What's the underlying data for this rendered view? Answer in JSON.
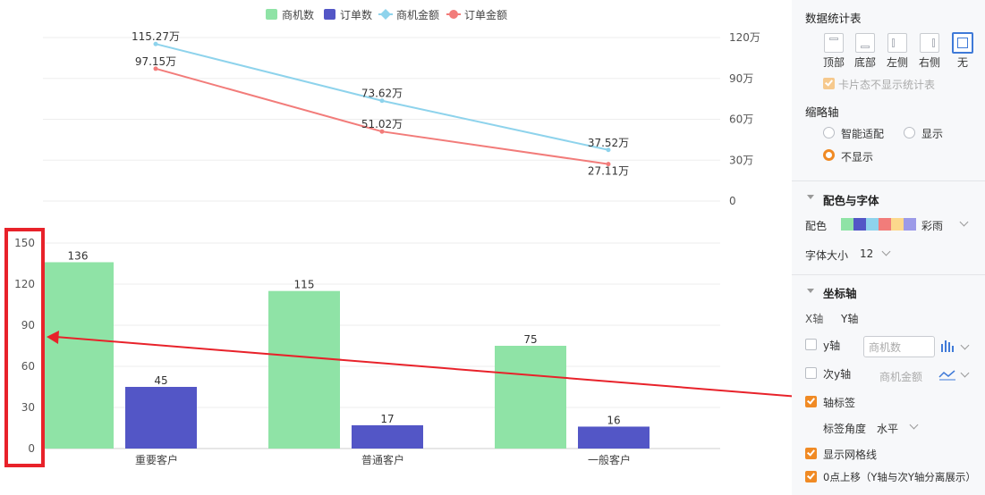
{
  "legend": [
    {
      "name": "商机数",
      "color": "#8fe3a6",
      "shape": "rect"
    },
    {
      "name": "订单数",
      "color": "#5356c6",
      "shape": "rect"
    },
    {
      "name": "商机金额",
      "color": "#8ed3ec",
      "shape": "diamond"
    },
    {
      "name": "订单金额",
      "color": "#f27c7a",
      "shape": "circle"
    }
  ],
  "chart_data": {
    "type": "bar",
    "categories": [
      "重要客户",
      "普通客户",
      "一般客户"
    ],
    "series": [
      {
        "name": "商机数",
        "type": "bar",
        "values": [
          136,
          115,
          75
        ],
        "labels": [
          "136",
          "115",
          "75"
        ],
        "color": "#8fe3a6"
      },
      {
        "name": "订单数",
        "type": "bar",
        "values": [
          45,
          17,
          16
        ],
        "labels": [
          "45",
          "17",
          "16"
        ],
        "color": "#5356c6"
      },
      {
        "name": "商机金额",
        "type": "line",
        "values": [
          115.27,
          73.62,
          37.52
        ],
        "labels": [
          "115.27万",
          "73.62万",
          "37.52万"
        ],
        "color": "#8ed3ec"
      },
      {
        "name": "订单金额",
        "type": "line",
        "values": [
          97.15,
          51.02,
          27.11
        ],
        "labels": [
          "97.15万",
          "51.02万",
          "27.11万"
        ],
        "color": "#f27c7a"
      }
    ],
    "y_axis": {
      "ticks": [
        "150",
        "120",
        "90",
        "60",
        "30",
        "0"
      ],
      "ylim": [
        0,
        150
      ]
    },
    "y2_axis": {
      "ticks": [
        "120万",
        "90万",
        "60万",
        "30万",
        "0"
      ],
      "ylim": [
        0,
        120
      ]
    },
    "grid": true,
    "legend_position": "top-center",
    "annotation": {
      "highlight_box_color": "#e8222a",
      "arrow_color": "#e8222a"
    }
  },
  "panel": {
    "stats_title": "数据统计表",
    "positions": [
      "顶部",
      "底部",
      "左侧",
      "右侧",
      "无"
    ],
    "card_hide_label": "卡片态不显示统计表",
    "zoom_title": "缩略轴",
    "zoom_options": [
      "智能适配",
      "显示",
      "不显示"
    ],
    "color_font_title": "配色与字体",
    "palette_label": "配色",
    "palette_name": "彩雨",
    "palette_colors": [
      "#8fe3a6",
      "#5356c6",
      "#8ed3ec",
      "#f27c7a",
      "#fcd88c",
      "#9c9ae8"
    ],
    "font_size_label": "字体大小",
    "font_size_value": "12",
    "axis_title": "坐标轴",
    "axis_tabs": [
      "X轴",
      "Y轴"
    ],
    "y_axis_label": "y轴",
    "y_axis_placeholder": "商机数",
    "y2_axis_label": "次y轴",
    "y2_axis_value": "商机金额",
    "axis_label_label": "轴标签",
    "label_angle_label": "标签角度",
    "label_angle_value": "水平",
    "grid_label": "显示网格线",
    "zero_up_label": "0点上移（Y轴与次Y轴分离展示）"
  }
}
